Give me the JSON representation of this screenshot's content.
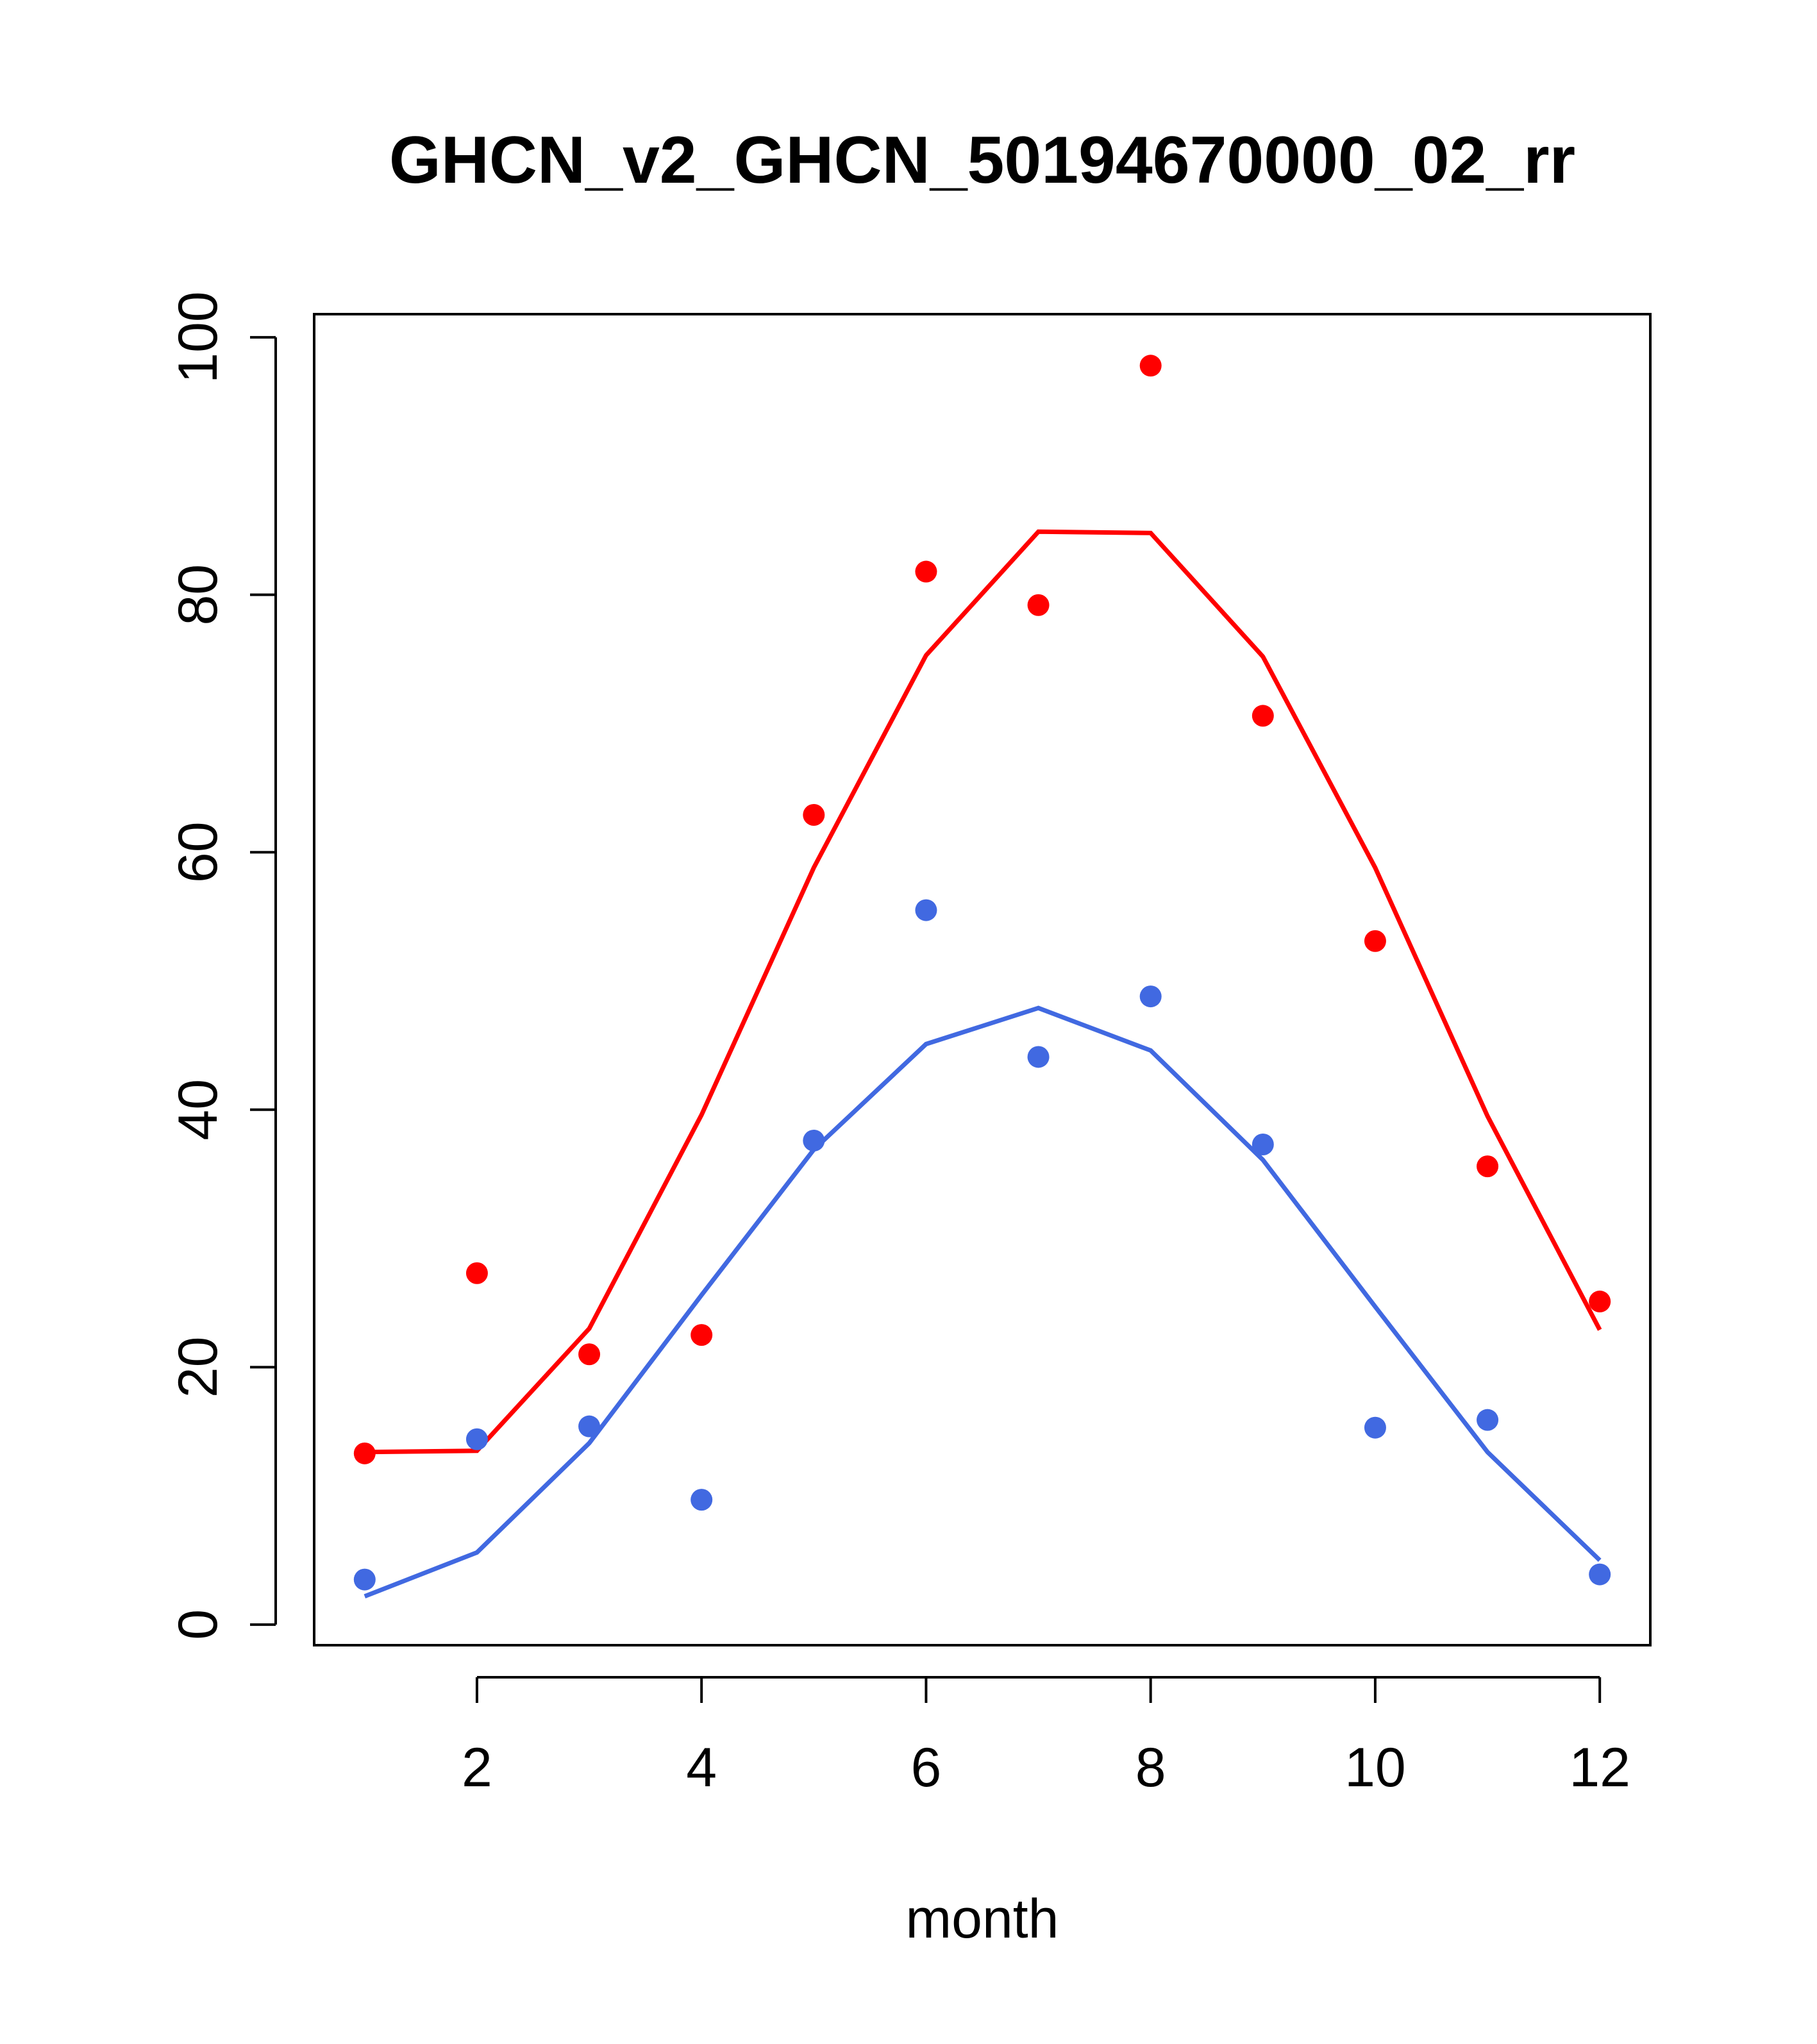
{
  "chart_data": {
    "type": "scatter",
    "title": "GHCN_v2_GHCN_50194670000_02_rr",
    "xlabel": "month",
    "ylabel": "",
    "xlim": [
      0.55,
      12.45
    ],
    "ylim": [
      -1.6,
      101.8
    ],
    "xticks": [
      2,
      4,
      6,
      8,
      10,
      12
    ],
    "yticks": [
      0,
      20,
      40,
      60,
      80,
      100
    ],
    "grid": false,
    "legend": "none",
    "series": [
      {
        "color": "#ff0000",
        "points_x": [
          1,
          2,
          3,
          4,
          5,
          6,
          7,
          8,
          9,
          10,
          11,
          12
        ],
        "points_y": [
          13.3,
          27.3,
          21.0,
          22.5,
          62.9,
          81.8,
          79.2,
          97.8,
          70.6,
          53.1,
          35.6,
          25.1
        ],
        "line_x": [
          1,
          2,
          3,
          4,
          5,
          6,
          7,
          8,
          9,
          10,
          11,
          12
        ],
        "line_y": [
          13.4,
          13.5,
          23.0,
          39.6,
          58.8,
          75.3,
          84.9,
          84.8,
          75.2,
          58.8,
          39.5,
          22.9
        ]
      },
      {
        "color": "#4169e1",
        "points_x": [
          1,
          2,
          3,
          4,
          5,
          6,
          7,
          8,
          9,
          10,
          11,
          12
        ],
        "points_y": [
          3.5,
          14.4,
          15.4,
          9.7,
          37.6,
          55.5,
          44.1,
          48.8,
          37.3,
          15.3,
          15.9,
          3.9
        ],
        "line_x": [
          1,
          2,
          3,
          4,
          5,
          6,
          7,
          8,
          9,
          10,
          11,
          12
        ],
        "line_y": [
          2.2,
          5.6,
          14.1,
          25.6,
          36.9,
          45.1,
          47.9,
          44.6,
          36.1,
          24.7,
          13.4,
          5.0
        ]
      }
    ]
  }
}
